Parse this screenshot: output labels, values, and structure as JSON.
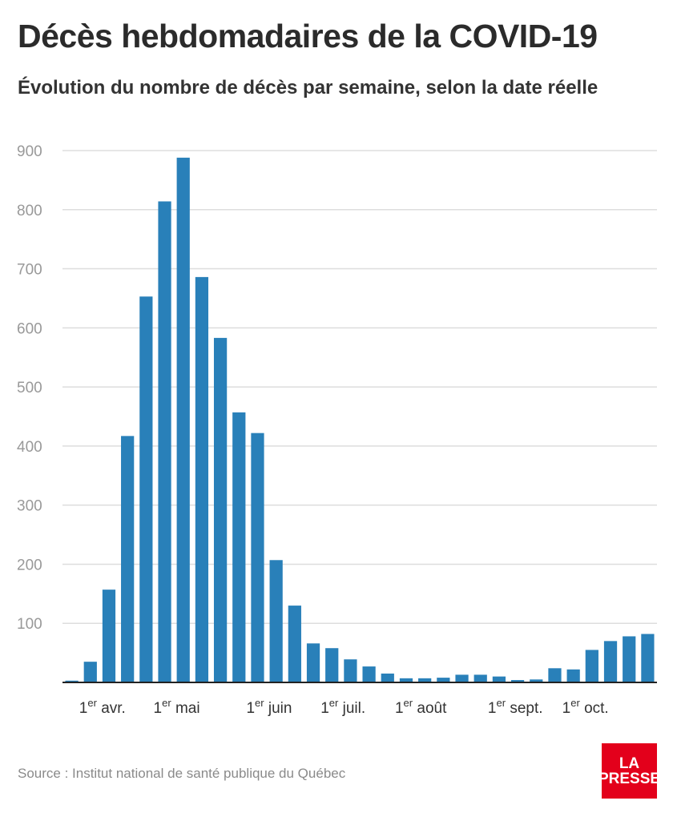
{
  "header": {
    "title": "Décès hebdomadaires de la COVID-19",
    "subtitle": "Évolution du nombre de décès par semaine, selon la date réelle"
  },
  "footer": {
    "source": "Source : Institut national de santé publique du Québec",
    "logo_line1": "LA",
    "logo_line2": "PRESSE"
  },
  "colors": {
    "bar": "#2980b9",
    "grid": "#dddddd",
    "axis": "#222222",
    "tick_text": "#999999",
    "label_text": "#333333",
    "logo_bg": "#e3001b"
  },
  "chart_data": {
    "type": "bar",
    "title": "Décès hebdomadaires de la COVID-19",
    "subtitle": "Évolution du nombre de décès par semaine, selon la date réelle",
    "xlabel": "",
    "ylabel": "",
    "ylim": [
      0,
      900
    ],
    "yticks": [
      100,
      200,
      300,
      400,
      500,
      600,
      700,
      800,
      900
    ],
    "grid": true,
    "values": [
      3,
      35,
      157,
      417,
      653,
      814,
      888,
      686,
      583,
      457,
      422,
      207,
      130,
      66,
      58,
      39,
      27,
      15,
      7,
      7,
      8,
      13,
      13,
      10,
      4,
      5,
      24,
      22,
      55,
      70,
      78,
      82
    ],
    "x_labels": [
      {
        "index": 1,
        "sup": "er",
        "text": "avr."
      },
      {
        "index": 5,
        "sup": "er",
        "text": "mai"
      },
      {
        "index": 10,
        "sup": "er",
        "text": "juin"
      },
      {
        "index": 14,
        "sup": "er",
        "text": "juil."
      },
      {
        "index": 18,
        "sup": "er",
        "text": "août"
      },
      {
        "index": 23,
        "sup": "er",
        "text": "sept."
      },
      {
        "index": 27,
        "sup": "er",
        "text": "oct."
      }
    ],
    "x_label_prefix": "1"
  }
}
